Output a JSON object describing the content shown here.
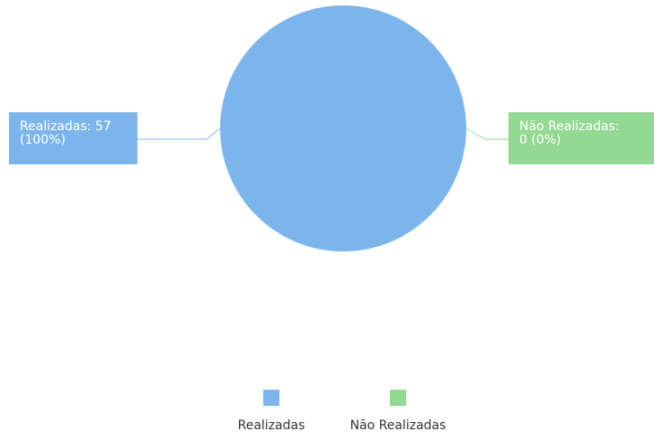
{
  "chart_data": {
    "type": "pie",
    "categories": [
      "Realizadas",
      "Não Realizadas"
    ],
    "values": [
      57,
      0
    ],
    "value_labels": [
      "Realizadas: 57 (100%)",
      "Não Realizadas: 0 (0%)"
    ],
    "colors": [
      "#7cb5ec",
      "#93d893"
    ],
    "legend": "bottom"
  }
}
